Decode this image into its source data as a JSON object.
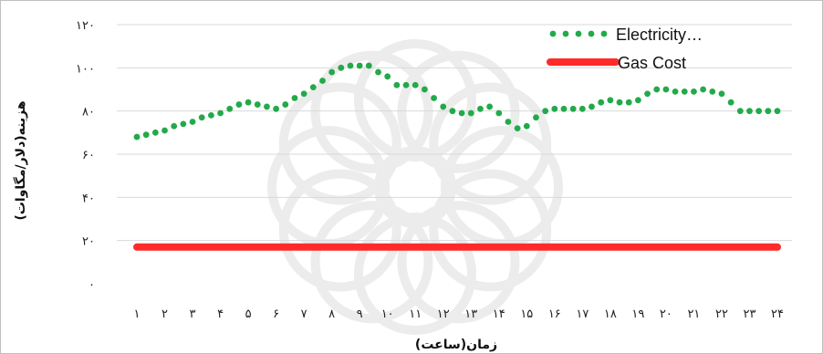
{
  "chart_data": {
    "type": "line",
    "title": "",
    "xlabel": "زمان(ساعت)",
    "ylabel": "هزینه(دلار/مگاوات)",
    "ylim": [
      0,
      120
    ],
    "y_ticks": [
      "۰",
      "۲۰",
      "۴۰",
      "۶۰",
      "۸۰",
      "۱۰۰",
      "۱۲۰"
    ],
    "y_tick_values": [
      0,
      20,
      40,
      60,
      80,
      100,
      120
    ],
    "categories": [
      "۱",
      "۲",
      "۳",
      "۴",
      "۵",
      "۶",
      "۷",
      "۸",
      "۹",
      "۱۰",
      "۱۱",
      "۱۲",
      "۱۳",
      "۱۴",
      "۱۵",
      "۱۶",
      "۱۷",
      "۱۸",
      "۱۹",
      "۲۰",
      "۲۱",
      "۲۲",
      "۲۳",
      "۲۴"
    ],
    "grid": true,
    "legend_position": "top-right",
    "series": [
      {
        "name": "Electricity…",
        "style": "dotted",
        "color": "#22aa4a",
        "x": [
          1,
          1.333,
          1.667,
          2,
          2.333,
          2.667,
          3,
          3.333,
          3.667,
          4,
          4.333,
          4.667,
          5,
          5.333,
          5.667,
          6,
          6.333,
          6.667,
          7,
          7.333,
          7.667,
          8,
          8.333,
          8.667,
          9,
          9.333,
          9.667,
          10,
          10.333,
          10.667,
          11,
          11.333,
          11.667,
          12,
          12.333,
          12.667,
          13,
          13.333,
          13.667,
          14,
          14.333,
          14.667,
          15,
          15.333,
          15.667,
          16,
          16.333,
          16.667,
          17,
          17.333,
          17.667,
          18,
          18.333,
          18.667,
          19,
          19.333,
          19.667,
          20,
          20.333,
          20.667,
          21,
          21.333,
          21.667,
          22,
          22.333,
          22.667,
          23,
          23.333,
          23.667,
          24
        ],
        "values": [
          68,
          69,
          70,
          71,
          73,
          74,
          75,
          77,
          78,
          79,
          81,
          83,
          84,
          83,
          82,
          81,
          83,
          86,
          88,
          91,
          94,
          98,
          100,
          101,
          101,
          101,
          98,
          96,
          92,
          92,
          92,
          90,
          86,
          82,
          80,
          79,
          79,
          81,
          82,
          79,
          75,
          72,
          73,
          77,
          80,
          81,
          81,
          81,
          81,
          82,
          84,
          85,
          84,
          84,
          85,
          88,
          90,
          90,
          89,
          89,
          89,
          90,
          89,
          88,
          84,
          80,
          80,
          80,
          80,
          80
        ]
      },
      {
        "name": "Gas Cost",
        "style": "solid",
        "color": "#ff2a2a",
        "values": [
          17,
          17,
          17,
          17,
          17,
          17,
          17,
          17,
          17,
          17,
          17,
          17,
          17,
          17,
          17,
          17,
          17,
          17,
          17,
          17,
          17,
          17,
          17,
          17
        ]
      }
    ]
  }
}
